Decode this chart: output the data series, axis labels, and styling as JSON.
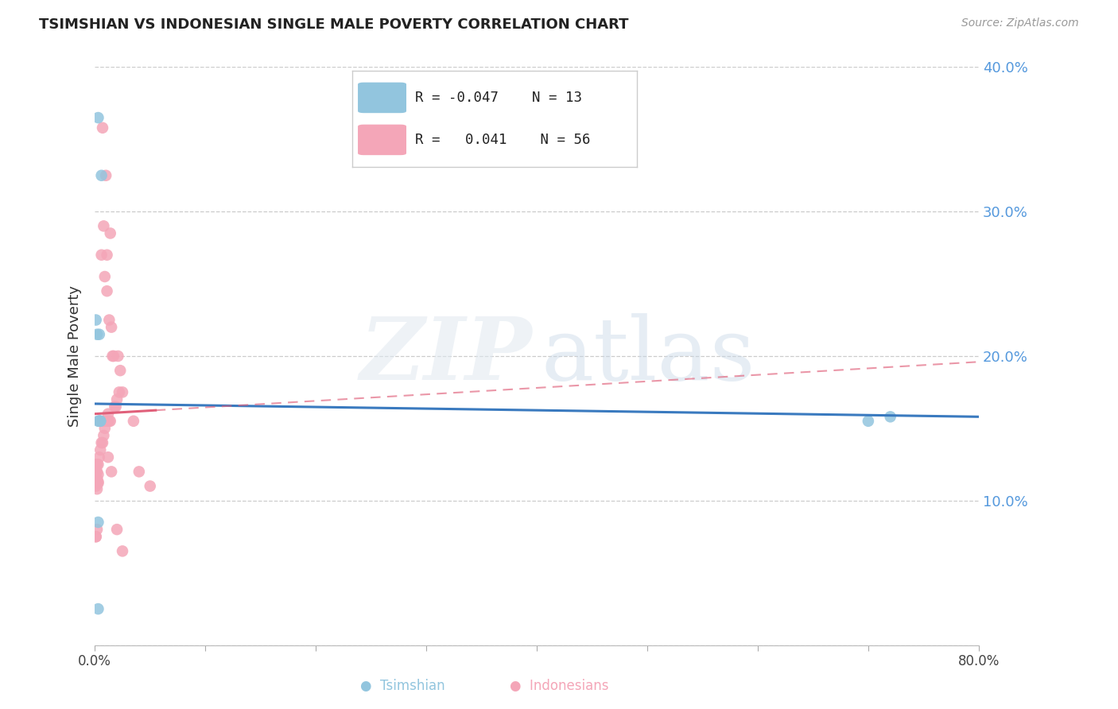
{
  "title": "TSIMSHIAN VS INDONESIAN SINGLE MALE POVERTY CORRELATION CHART",
  "source": "Source: ZipAtlas.com",
  "ylabel": "Single Male Poverty",
  "xlim": [
    0,
    0.8
  ],
  "ylim": [
    0,
    0.4
  ],
  "legend_R_tsimshian": "-0.047",
  "legend_N_tsimshian": "13",
  "legend_R_indonesian": "0.041",
  "legend_N_indonesian": "56",
  "tsimshian_color": "#92c5de",
  "indonesian_color": "#f4a6b8",
  "regression_tsimshian_color": "#3a7abf",
  "regression_indonesian_color": "#e0607a",
  "background_color": "#ffffff",
  "grid_color": "#cccccc",
  "tsimshian_x": [
    0.003,
    0.006,
    0.001,
    0.002,
    0.004,
    0.005,
    0.003,
    0.005,
    0.004,
    0.003,
    0.003,
    0.7,
    0.72
  ],
  "tsimshian_y": [
    0.365,
    0.325,
    0.225,
    0.215,
    0.215,
    0.155,
    0.155,
    0.155,
    0.155,
    0.085,
    0.025,
    0.155,
    0.158
  ],
  "indonesian_x": [
    0.007,
    0.01,
    0.008,
    0.006,
    0.009,
    0.011,
    0.013,
    0.015,
    0.011,
    0.014,
    0.017,
    0.016,
    0.021,
    0.023,
    0.025,
    0.022,
    0.02,
    0.018,
    0.019,
    0.014,
    0.012,
    0.013,
    0.011,
    0.009,
    0.008,
    0.007,
    0.006,
    0.005,
    0.004,
    0.003,
    0.002,
    0.001,
    0.001,
    0.002,
    0.001,
    0.003,
    0.004,
    0.001,
    0.002,
    0.003,
    0.001,
    0.002,
    0.035,
    0.04,
    0.05,
    0.012,
    0.015,
    0.02,
    0.025,
    0.002,
    0.001,
    0.003,
    0.002,
    0.001,
    0.001,
    0.008
  ],
  "indonesian_y": [
    0.358,
    0.325,
    0.29,
    0.27,
    0.255,
    0.245,
    0.225,
    0.22,
    0.27,
    0.285,
    0.2,
    0.2,
    0.2,
    0.19,
    0.175,
    0.175,
    0.17,
    0.165,
    0.165,
    0.155,
    0.16,
    0.155,
    0.155,
    0.15,
    0.145,
    0.14,
    0.14,
    0.135,
    0.13,
    0.125,
    0.125,
    0.125,
    0.122,
    0.12,
    0.119,
    0.118,
    0.155,
    0.115,
    0.113,
    0.112,
    0.11,
    0.108,
    0.155,
    0.12,
    0.11,
    0.13,
    0.12,
    0.08,
    0.065,
    0.115,
    0.115,
    0.113,
    0.08,
    0.075,
    0.075,
    0.155
  ]
}
